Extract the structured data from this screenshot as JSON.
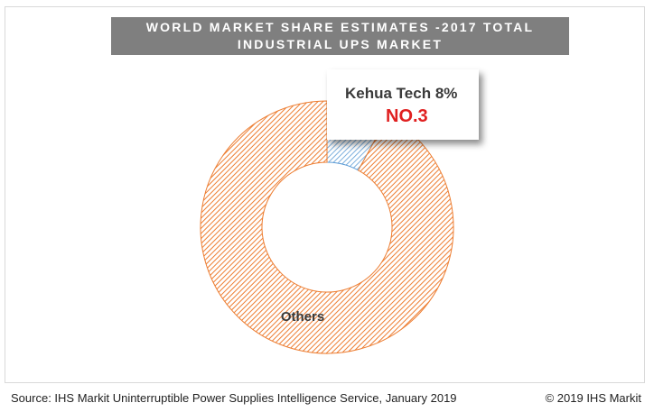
{
  "chart_data": {
    "type": "pie",
    "title_line1": "WORLD MARKET SHARE ESTIMATES -2017 TOTAL",
    "title_line2": "INDUSTRIAL UPS MARKET",
    "donut": true,
    "slices": [
      {
        "label": "Kehua Tech 8%",
        "value": 8,
        "color": "#5b9bd5",
        "annotation": "NO.3",
        "annotation_color": "#e02020"
      },
      {
        "label": "Others",
        "value": 92,
        "color": "#ed7d31"
      }
    ]
  },
  "footer": {
    "source": "Source: IHS Markit Uninterruptible Power Supplies Intelligence Service, January 2019",
    "copyright": "© 2019 IHS Markit"
  }
}
